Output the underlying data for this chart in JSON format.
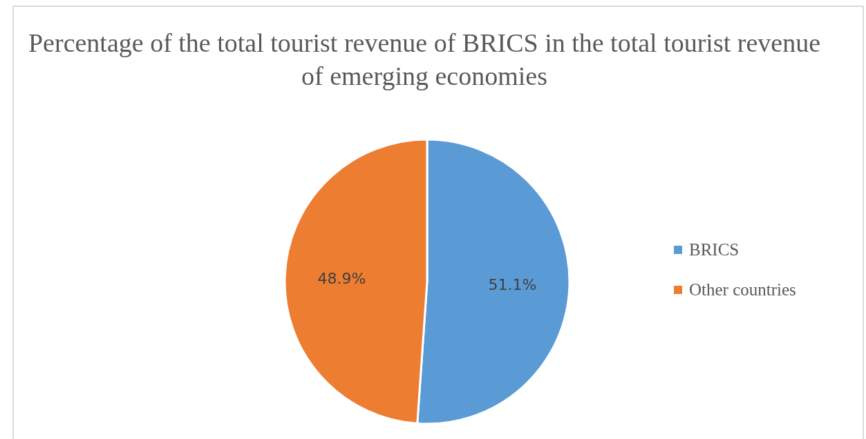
{
  "chart_data": {
    "type": "pie",
    "title": "Percentage of the total tourist revenue of BRICS in the total tourist revenue of emerging economies",
    "categories": [
      "BRICS",
      "Other countries"
    ],
    "values": [
      51.1,
      48.9
    ],
    "colors": [
      "#5b9bd5",
      "#ed7d31"
    ],
    "value_labels": [
      "51.1%",
      "48.9%"
    ],
    "legend": "right"
  }
}
